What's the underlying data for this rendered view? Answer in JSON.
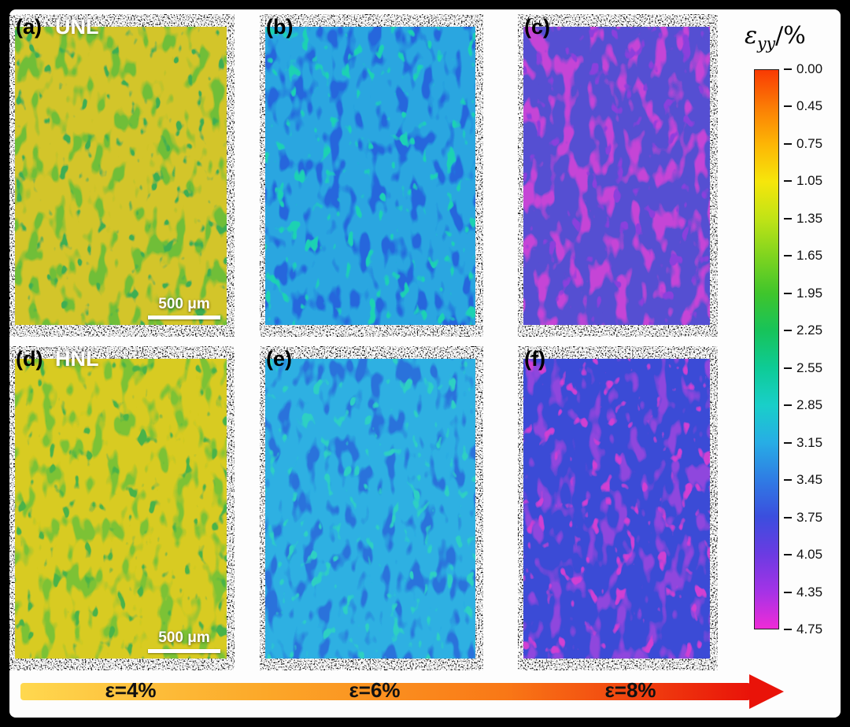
{
  "figure": {
    "background_color": "#000000",
    "canvas_color": "#fdfdfd",
    "panels": [
      {
        "label": "(a)",
        "row_label": "UNL",
        "scalebar_label": "500 μm",
        "applied_strain": "ε=4%",
        "base_color": "#d3c52a",
        "blob_color": "#6fbe37",
        "accent_color": "#3cae52"
      },
      {
        "label": "(b)",
        "applied_strain": "ε=6%",
        "base_color": "#2aa6e0",
        "blob_color": "#2566dc",
        "accent_color": "#1ed2b2"
      },
      {
        "label": "(c)",
        "applied_strain": "ε=8%",
        "base_color": "#5450d2",
        "blob_color": "#c544d6",
        "accent_color": "#8b3fdc"
      },
      {
        "label": "(d)",
        "row_label": "HNL",
        "scalebar_label": "500 μm",
        "applied_strain": "ε=4%",
        "base_color": "#d8cb20",
        "blob_color": "#7cc236",
        "accent_color": "#49b348"
      },
      {
        "label": "(e)",
        "applied_strain": "ε=6%",
        "base_color": "#2fb0e2",
        "blob_color": "#2b72db",
        "accent_color": "#2fd0c2"
      },
      {
        "label": "(f)",
        "applied_strain": "ε=8%",
        "base_color": "#3a4bd6",
        "blob_color": "#8f46dd",
        "accent_color": "#d03fd2"
      }
    ],
    "colorbar": {
      "title_symbol": "ε",
      "title_subscript": "yy",
      "title_unit": "/%",
      "tick_labels": [
        "0.00",
        "0.45",
        "0.75",
        "1.05",
        "1.35",
        "1.65",
        "1.95",
        "2.25",
        "2.55",
        "2.85",
        "3.15",
        "3.45",
        "3.75",
        "4.05",
        "4.35",
        "4.75"
      ],
      "colors": [
        "#f93a03",
        "#fb7d05",
        "#fdb605",
        "#f6e60b",
        "#c0e316",
        "#7fd41f",
        "#3fc52c",
        "#17c35a",
        "#0ecb96",
        "#19cfc9",
        "#27ade5",
        "#2f7ce4",
        "#3b4ede",
        "#6b3be2",
        "#a433e6",
        "#ef2bd7"
      ]
    },
    "strain_axis": {
      "labels": [
        "ε=4%",
        "ε=6%",
        "ε=8%"
      ],
      "gradient": [
        "#ffd84f",
        "#fca829",
        "#f97716",
        "#e91309"
      ]
    }
  },
  "chart_data": {
    "type": "heatmap",
    "description": "DIC εyy strain contour maps of UNL and HNL samples at applied strains 4%, 6%, 8%",
    "colorbar_label": "εyy/%",
    "colorbar_ticks": [
      0.0,
      0.45,
      0.75,
      1.05,
      1.35,
      1.65,
      1.95,
      2.25,
      2.55,
      2.85,
      3.15,
      3.45,
      3.75,
      4.05,
      4.35,
      4.75
    ],
    "panels": [
      {
        "id": "(a)",
        "sample": "UNL",
        "applied_strain_pct": 4,
        "dominant_local_strain_range": [
          0.75,
          1.65
        ]
      },
      {
        "id": "(b)",
        "sample": "UNL",
        "applied_strain_pct": 6,
        "dominant_local_strain_range": [
          2.85,
          3.45
        ]
      },
      {
        "id": "(c)",
        "sample": "UNL",
        "applied_strain_pct": 8,
        "dominant_local_strain_range": [
          3.75,
          4.75
        ]
      },
      {
        "id": "(d)",
        "sample": "HNL",
        "applied_strain_pct": 4,
        "dominant_local_strain_range": [
          0.75,
          1.35
        ]
      },
      {
        "id": "(e)",
        "sample": "HNL",
        "applied_strain_pct": 6,
        "dominant_local_strain_range": [
          2.85,
          3.15
        ]
      },
      {
        "id": "(f)",
        "sample": "HNL",
        "applied_strain_pct": 8,
        "dominant_local_strain_range": [
          3.45,
          4.35
        ]
      }
    ]
  }
}
